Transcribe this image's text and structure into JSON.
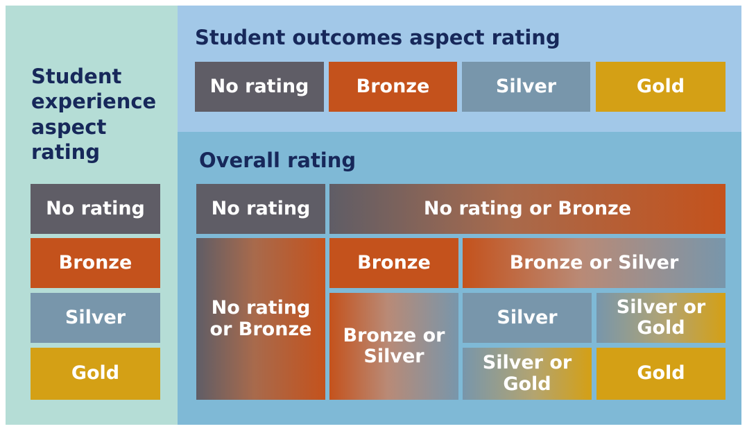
{
  "left": {
    "title": "Student experience aspect rating",
    "ratings": [
      "No rating",
      "Bronze",
      "Silver",
      "Gold"
    ]
  },
  "top": {
    "title": "Student outcomes aspect rating",
    "ratings": [
      "No rating",
      "Bronze",
      "Silver",
      "Gold"
    ]
  },
  "overall": {
    "title": "Overall rating",
    "cells": [
      "No rating",
      "No rating or Bronze",
      "No rating or Bronze",
      "Bronze",
      "Bronze or Silver",
      "Bronze or Silver",
      "Silver",
      "Silver or Gold",
      "Silver or Gold",
      "Gold"
    ]
  }
}
